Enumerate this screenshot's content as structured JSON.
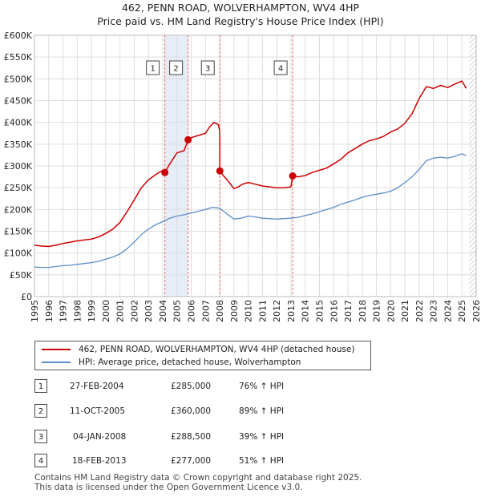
{
  "header": {
    "title_line1": "462, PENN ROAD, WOLVERHAMPTON, WV4 4HP",
    "title_line2": "Price paid vs. HM Land Registry's House Price Index (HPI)"
  },
  "colors": {
    "property_line": "#cc0000",
    "hpi_line": "#5b8ec9",
    "band_fill": "#e6edf7",
    "grid": "#dddddd",
    "marker_line": "#ee6666",
    "hatch": "#999999"
  },
  "chart_data": {
    "type": "line",
    "title": "462, PENN ROAD, WOLVERHAMPTON, WV4 4HP",
    "subtitle": "Price paid vs. HM Land Registry's House Price Index (HPI)",
    "xlabel": "",
    "ylabel": "",
    "xlim": [
      1995,
      2026
    ],
    "ylim": [
      0,
      600000
    ],
    "x_ticks": [
      1995,
      1996,
      1997,
      1998,
      1999,
      2000,
      2001,
      2002,
      2003,
      2004,
      2005,
      2006,
      2007,
      2008,
      2009,
      2010,
      2011,
      2012,
      2013,
      2014,
      2015,
      2016,
      2017,
      2018,
      2019,
      2020,
      2021,
      2022,
      2023,
      2024,
      2025,
      2026
    ],
    "y_ticks": [
      0,
      50000,
      100000,
      150000,
      200000,
      250000,
      300000,
      350000,
      400000,
      450000,
      500000,
      550000,
      600000
    ],
    "y_tick_labels": [
      "£0",
      "£50K",
      "£100K",
      "£150K",
      "£200K",
      "£250K",
      "£300K",
      "£350K",
      "£400K",
      "£450K",
      "£500K",
      "£550K",
      "£600K"
    ],
    "grid": true,
    "shaded_band": [
      2004.15,
      2005.78
    ],
    "hatched_region_start": 2025.5,
    "series": [
      {
        "name": "462, PENN ROAD, WOLVERHAMPTON, WV4 4HP (detached house)",
        "x": [
          1995,
          1995.5,
          1996,
          1996.5,
          1997,
          1997.5,
          1998,
          1998.5,
          1999,
          1999.5,
          2000,
          2000.5,
          2001,
          2001.5,
          2002,
          2002.5,
          2003,
          2003.5,
          2004,
          2004.15,
          2004.5,
          2005,
          2005.5,
          2005.78,
          2006,
          2006.5,
          2007,
          2007.3,
          2007.6,
          2007.9,
          2008.0,
          2008.01,
          2008.3,
          2008.6,
          2009,
          2009.3,
          2009.6,
          2010,
          2010.5,
          2011,
          2011.5,
          2012,
          2012.5,
          2013,
          2013.12,
          2013.5,
          2014,
          2014.5,
          2015,
          2015.5,
          2016,
          2016.5,
          2017,
          2017.5,
          2018,
          2018.5,
          2019,
          2019.5,
          2020,
          2020.5,
          2021,
          2021.5,
          2022,
          2022.5,
          2023,
          2023.5,
          2024,
          2024.5,
          2025,
          2025.3
        ],
        "values": [
          118000,
          116000,
          115000,
          118000,
          122000,
          125000,
          128000,
          130000,
          132000,
          137000,
          145000,
          155000,
          170000,
          195000,
          222000,
          250000,
          268000,
          280000,
          290000,
          285000,
          305000,
          330000,
          335000,
          360000,
          365000,
          370000,
          375000,
          390000,
          400000,
          395000,
          380000,
          288500,
          276000,
          265000,
          248000,
          252000,
          258000,
          262000,
          258000,
          254000,
          252000,
          250000,
          250000,
          252000,
          277000,
          275000,
          278000,
          285000,
          290000,
          295000,
          305000,
          315000,
          330000,
          340000,
          350000,
          358000,
          362000,
          368000,
          378000,
          385000,
          398000,
          420000,
          455000,
          482000,
          478000,
          485000,
          480000,
          488000,
          495000,
          478000
        ]
      },
      {
        "name": "HPI: Average price, detached house, Wolverhampton",
        "x": [
          1995,
          1995.5,
          1996,
          1996.5,
          1997,
          1997.5,
          1998,
          1998.5,
          1999,
          1999.5,
          2000,
          2000.5,
          2001,
          2001.5,
          2002,
          2002.5,
          2003,
          2003.5,
          2004,
          2004.5,
          2005,
          2005.5,
          2006,
          2006.5,
          2007,
          2007.5,
          2008,
          2008.5,
          2009,
          2009.5,
          2010,
          2010.5,
          2011,
          2011.5,
          2012,
          2012.5,
          2013,
          2013.5,
          2014,
          2014.5,
          2015,
          2015.5,
          2016,
          2016.5,
          2017,
          2017.5,
          2018,
          2018.5,
          2019,
          2019.5,
          2020,
          2020.5,
          2021,
          2021.5,
          2022,
          2022.5,
          2023,
          2023.5,
          2024,
          2024.5,
          2025,
          2025.3
        ],
        "values": [
          68000,
          67000,
          67000,
          69000,
          71000,
          72000,
          74000,
          76000,
          78000,
          81000,
          86000,
          91000,
          98000,
          110000,
          125000,
          142000,
          155000,
          165000,
          172000,
          180000,
          185000,
          188000,
          192000,
          196000,
          200000,
          205000,
          203000,
          190000,
          178000,
          180000,
          185000,
          183000,
          180000,
          179000,
          178000,
          179000,
          180000,
          182000,
          186000,
          190000,
          195000,
          200000,
          205000,
          212000,
          217000,
          222000,
          228000,
          232000,
          235000,
          238000,
          242000,
          250000,
          262000,
          275000,
          292000,
          312000,
          318000,
          320000,
          318000,
          322000,
          328000,
          324000
        ]
      }
    ],
    "sale_markers": [
      {
        "label": "1",
        "x": 2004.15,
        "y": 285000
      },
      {
        "label": "2",
        "x": 2005.78,
        "y": 360000
      },
      {
        "label": "3",
        "x": 2008.01,
        "y": 288500
      },
      {
        "label": "4",
        "x": 2013.12,
        "y": 277000
      }
    ]
  },
  "legend": {
    "property_label": "462, PENN ROAD, WOLVERHAMPTON, WV4 4HP (detached house)",
    "hpi_label": "HPI: Average price, detached house, Wolverhampton"
  },
  "sales": [
    {
      "num": "1",
      "date": "27-FEB-2004",
      "price": "£285,000",
      "hpi": "76% ↑ HPI"
    },
    {
      "num": "2",
      "date": "11-OCT-2005",
      "price": "£360,000",
      "hpi": "89% ↑ HPI"
    },
    {
      "num": "3",
      "date": "04-JAN-2008",
      "price": "£288,500",
      "hpi": "39% ↑ HPI"
    },
    {
      "num": "4",
      "date": "18-FEB-2013",
      "price": "£277,000",
      "hpi": "51% ↑ HPI"
    }
  ],
  "footer": {
    "line1": "Contains HM Land Registry data © Crown copyright and database right 2025.",
    "line2": "This data is licensed under the Open Government Licence v3.0."
  }
}
